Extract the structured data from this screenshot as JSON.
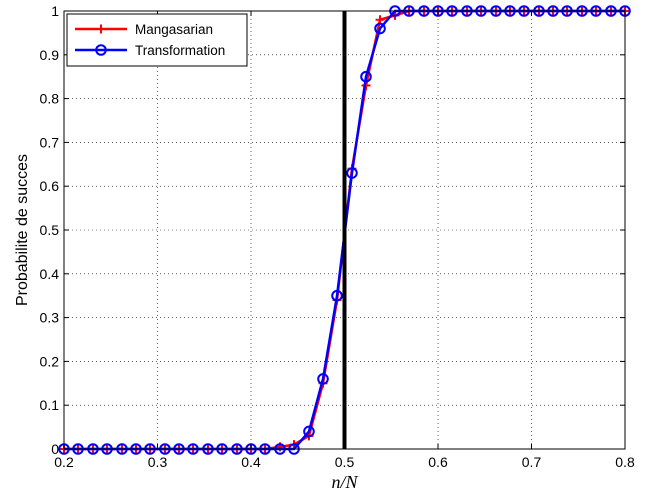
{
  "chart_data": {
    "type": "line",
    "title": "",
    "xlabel": "n/N",
    "ylabel": "Probabilite de succes",
    "xlim": [
      0.2,
      0.8
    ],
    "ylim": [
      0,
      1
    ],
    "xticks": [
      "0.2",
      "0.3",
      "0.4",
      "0.5",
      "0.6",
      "0.7",
      "0.8"
    ],
    "yticks": [
      "0",
      "0.1",
      "0.2",
      "0.3",
      "0.4",
      "0.5",
      "0.6",
      "0.7",
      "0.8",
      "0.9",
      "1"
    ],
    "grid": true,
    "legend_position": "top-left",
    "vertical_line": {
      "x": 0.5,
      "color": "#000000"
    },
    "x": [
      0.2,
      0.215,
      0.231,
      0.246,
      0.262,
      0.277,
      0.292,
      0.308,
      0.323,
      0.338,
      0.354,
      0.369,
      0.385,
      0.4,
      0.415,
      0.431,
      0.446,
      0.462,
      0.477,
      0.492,
      0.508,
      0.523,
      0.538,
      0.554,
      0.569,
      0.585,
      0.6,
      0.615,
      0.631,
      0.646,
      0.662,
      0.677,
      0.692,
      0.708,
      0.723,
      0.738,
      0.754,
      0.769,
      0.785,
      0.8
    ],
    "series": [
      {
        "name": "Mangasarian",
        "color": "#ff0000",
        "marker": "plus",
        "values": [
          0,
          0,
          0,
          0,
          0,
          0,
          0,
          0,
          0,
          0,
          0,
          0,
          0,
          0,
          0,
          0.005,
          0.01,
          0.03,
          0.15,
          0.34,
          0.64,
          0.83,
          0.98,
          0.99,
          1,
          1,
          1,
          1,
          1,
          1,
          1,
          1,
          1,
          1,
          1,
          1,
          1,
          1,
          1,
          1
        ]
      },
      {
        "name": "Transformation",
        "color": "#0000ff",
        "marker": "circle",
        "values": [
          0,
          0,
          0,
          0,
          0,
          0,
          0,
          0,
          0,
          0,
          0,
          0,
          0,
          0,
          0,
          0,
          0,
          0.04,
          0.16,
          0.35,
          0.63,
          0.85,
          0.96,
          1,
          1,
          1,
          1,
          1,
          1,
          1,
          1,
          1,
          1,
          1,
          1,
          1,
          1,
          1,
          1,
          1
        ]
      }
    ]
  }
}
